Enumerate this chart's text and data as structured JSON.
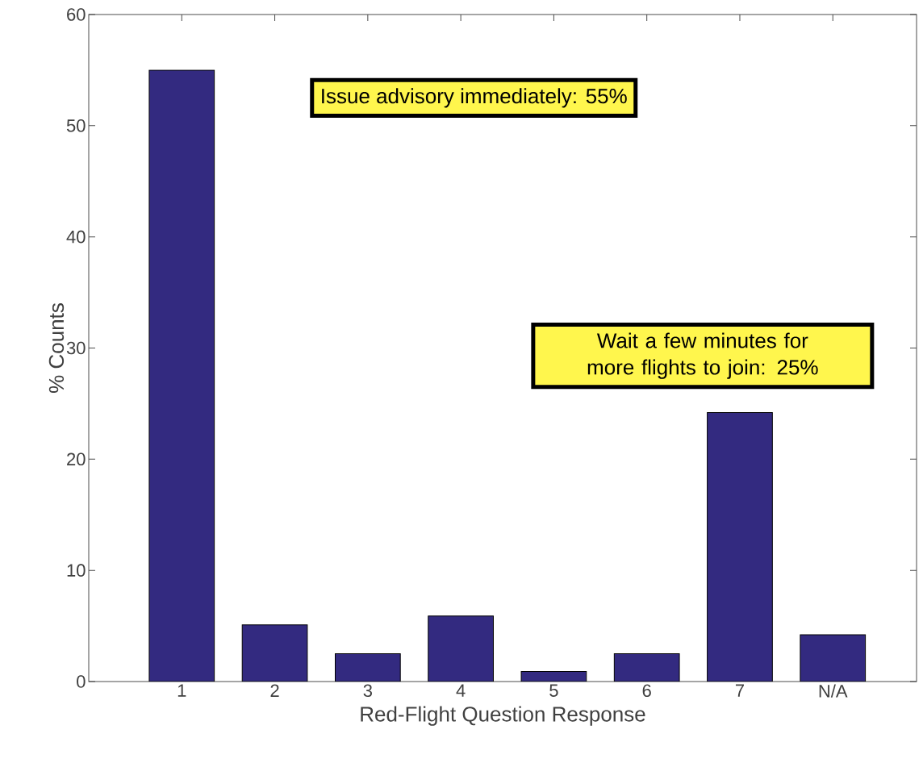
{
  "chart_data": {
    "type": "bar",
    "xlabel": "Red-Flight Question Response",
    "ylabel": "% Counts",
    "categories": [
      "1",
      "2",
      "3",
      "4",
      "5",
      "6",
      "7",
      "N/A"
    ],
    "values": [
      55,
      5.1,
      2.5,
      5.9,
      0.9,
      2.5,
      24.2,
      4.2
    ],
    "color": "#332a80",
    "ylim": [
      0,
      60
    ],
    "yticks": [
      0,
      10,
      20,
      30,
      40,
      50,
      60
    ],
    "grid": false,
    "annotations": [
      "Issue advisory immediately:  55%",
      "Wait a few minutes for more flights to join:  25%"
    ]
  }
}
